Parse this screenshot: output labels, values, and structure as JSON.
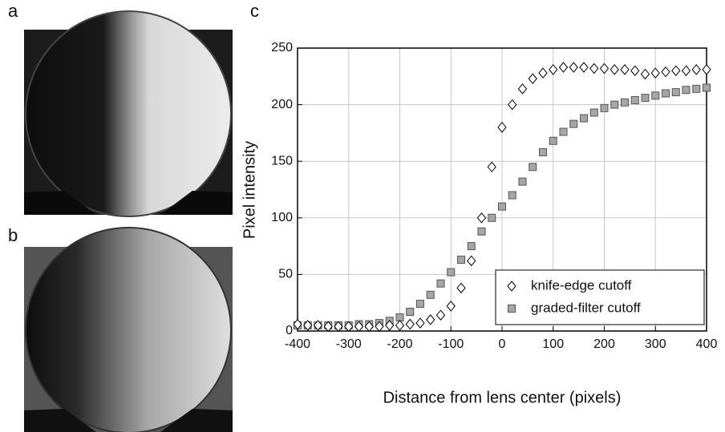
{
  "panel_labels": [
    "a",
    "b",
    "c"
  ],
  "chart_data": {
    "type": "scatter",
    "x_label": "Distance from lens center (pixels)",
    "y_label": "Pixel intensity",
    "x": [
      -400,
      -380,
      -360,
      -340,
      -320,
      -300,
      -280,
      -260,
      -240,
      -220,
      -200,
      -180,
      -160,
      -140,
      -120,
      -100,
      -80,
      -60,
      -40,
      -20,
      0,
      20,
      40,
      60,
      80,
      100,
      120,
      140,
      160,
      180,
      200,
      220,
      240,
      260,
      280,
      300,
      320,
      340,
      360,
      380,
      400
    ],
    "series": [
      {
        "name": "knife-edge cutoff",
        "color": "#000000",
        "marker": "diamond",
        "values": [
          6,
          5,
          5,
          4,
          4,
          4,
          4,
          4,
          4,
          5,
          5,
          6,
          7,
          10,
          14,
          22,
          38,
          62,
          100,
          145,
          180,
          200,
          214,
          223,
          228,
          231,
          233,
          233,
          233,
          232,
          232,
          231,
          231,
          230,
          227,
          228,
          229,
          230,
          230,
          231,
          231
        ]
      },
      {
        "name": "graded-filter cutoff",
        "color": "#a6a6a6",
        "marker": "square",
        "values": [
          5,
          5,
          5,
          5,
          5,
          5,
          6,
          6,
          7,
          9,
          12,
          17,
          24,
          32,
          42,
          52,
          63,
          75,
          88,
          100,
          110,
          120,
          132,
          145,
          158,
          168,
          176,
          183,
          188,
          193,
          197,
          200,
          202,
          204,
          206,
          208,
          210,
          211,
          213,
          214,
          215
        ]
      }
    ],
    "xlim": [
      -400,
      400
    ],
    "xticks": [
      -400,
      -300,
      -200,
      -100,
      0,
      100,
      200,
      300,
      400
    ],
    "ylim": [
      0,
      250
    ],
    "yticks": [
      0,
      50,
      100,
      150,
      200,
      250
    ],
    "grid": true,
    "legend": "lower right"
  }
}
